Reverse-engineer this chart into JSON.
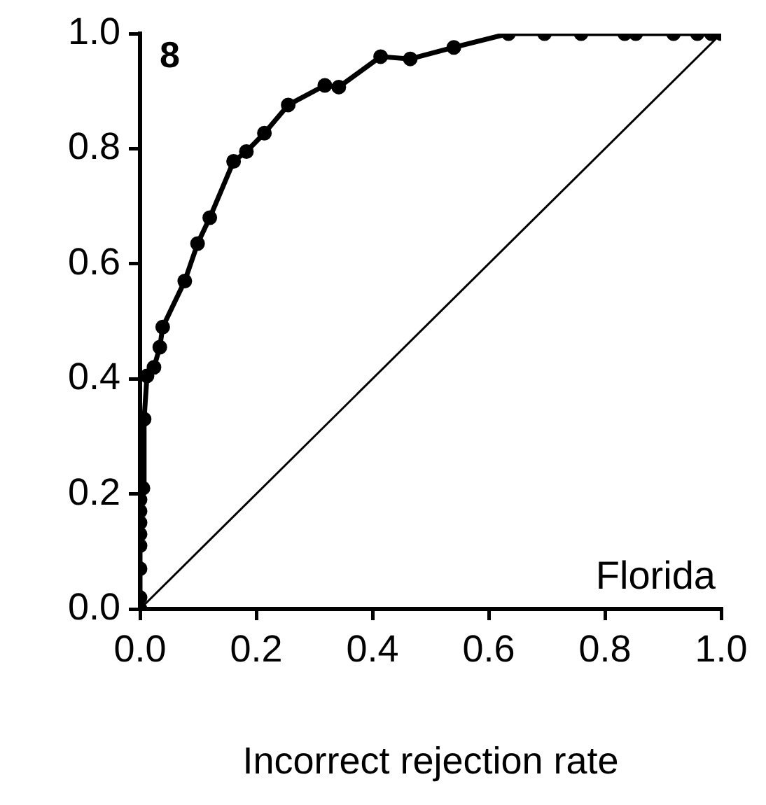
{
  "chart_data": {
    "type": "line",
    "xlabel": "Incorrect rejection rate",
    "annotations": [
      "8",
      "Florida"
    ],
    "xlim": [
      0,
      1
    ],
    "ylim": [
      0,
      1
    ],
    "xticks": [
      {
        "value": 0,
        "label": "0.0"
      },
      {
        "value": 0.2,
        "label": "0.2"
      },
      {
        "value": 0.4,
        "label": "0.4"
      },
      {
        "value": 0.6,
        "label": "0.6"
      },
      {
        "value": 0.8,
        "label": "0.8"
      },
      {
        "value": 1,
        "label": "1.0"
      }
    ],
    "yticks": [
      {
        "value": 0,
        "label": "0.0"
      },
      {
        "value": 0.2,
        "label": "0.2"
      },
      {
        "value": 0.4,
        "label": "0.4"
      },
      {
        "value": 0.6,
        "label": "0.6"
      },
      {
        "value": 0.8,
        "label": "0.8"
      },
      {
        "value": 1,
        "label": "1.0"
      }
    ],
    "grid": false,
    "legend": false,
    "series": [
      {
        "color": "#000000",
        "marker": "circle",
        "x": [
          0,
          0,
          0,
          0,
          0,
          0,
          0,
          0,
          0.005,
          0.007,
          0.012,
          0.024,
          0.034,
          0.039,
          0.077,
          0.099,
          0.12,
          0.161,
          0.183,
          0.214,
          0.255,
          0.318,
          0.342,
          0.414,
          0.465,
          0.54,
          0.634,
          0.696,
          0.759,
          0.834,
          0.853,
          0.918,
          0.959,
          0.983,
          1
        ],
        "values": [
          0,
          0.02,
          0.07,
          0.11,
          0.13,
          0.15,
          0.17,
          0.19,
          0.21,
          0.33,
          0.405,
          0.42,
          0.455,
          0.49,
          0.57,
          0.635,
          0.68,
          0.778,
          0.795,
          0.827,
          0.876,
          0.91,
          0.907,
          0.96,
          0.956,
          0.976,
          1,
          1,
          1,
          1,
          1,
          1,
          1,
          1,
          1
        ]
      },
      {
        "color": "#000000",
        "marker": "none",
        "x": [
          0,
          1
        ],
        "values": [
          0,
          1
        ]
      }
    ]
  }
}
